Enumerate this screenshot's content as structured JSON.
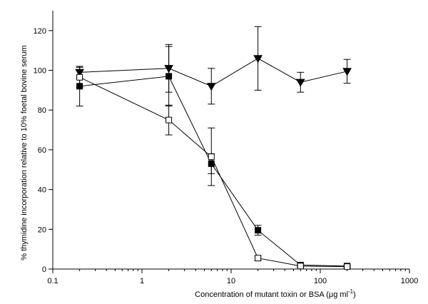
{
  "chart_data": {
    "type": "scatter",
    "x_scale": "log",
    "xlim": [
      0.1,
      1000
    ],
    "ylim": [
      0,
      130
    ],
    "x_ticks": [
      "0.1",
      "1",
      "10",
      "100",
      "1000"
    ],
    "y_ticks": [
      "0",
      "20",
      "40",
      "60",
      "80",
      "100",
      "120"
    ],
    "x_tick_values": [
      0.1,
      1,
      10,
      100,
      1000
    ],
    "y_tick_values": [
      0,
      20,
      40,
      60,
      80,
      100,
      120
    ],
    "xlabel": {
      "main": "Concentration of mutant toxin or BSA (",
      "mu": "μ",
      "unit": "g ml",
      "sup": "-1",
      "close": ")"
    },
    "ylabel": "% thymidine incorporation relative to 10% foetal bovine serum",
    "grid": false,
    "series": [
      {
        "marker": "triangle-down",
        "color": "#000000",
        "points": [
          {
            "x": 0.2,
            "y": 99,
            "err": 3
          },
          {
            "x": 2,
            "y": 101,
            "err": 12
          },
          {
            "x": 6,
            "y": 92,
            "err": 9
          },
          {
            "x": 20,
            "y": 106,
            "err": 16
          },
          {
            "x": 60,
            "y": 94,
            "err": 5
          },
          {
            "x": 200,
            "y": 99.5,
            "err": 6
          }
        ]
      },
      {
        "marker": "square-filled",
        "color": "#000000",
        "points": [
          {
            "x": 0.2,
            "y": 92,
            "err": 10
          },
          {
            "x": 2,
            "y": 97,
            "err": 15
          },
          {
            "x": 6,
            "y": 53,
            "err": 5
          },
          {
            "x": 20,
            "y": 19.5,
            "err": 2.5
          },
          {
            "x": 60,
            "y": 2,
            "err": 1
          },
          {
            "x": 200,
            "y": 1.5,
            "err": 0.5
          }
        ]
      },
      {
        "marker": "square-open",
        "color": "#000000",
        "points": [
          {
            "x": 0.2,
            "y": 96.5,
            "err": 5
          },
          {
            "x": 2,
            "y": 75,
            "err": 7.5
          },
          {
            "x": 6,
            "y": 56.5,
            "err": 14.5
          },
          {
            "x": 20,
            "y": 5.5,
            "err": 1
          },
          {
            "x": 60,
            "y": 1.5,
            "err": 0.5
          },
          {
            "x": 200,
            "y": 1.2,
            "err": 0.5
          }
        ]
      }
    ]
  }
}
